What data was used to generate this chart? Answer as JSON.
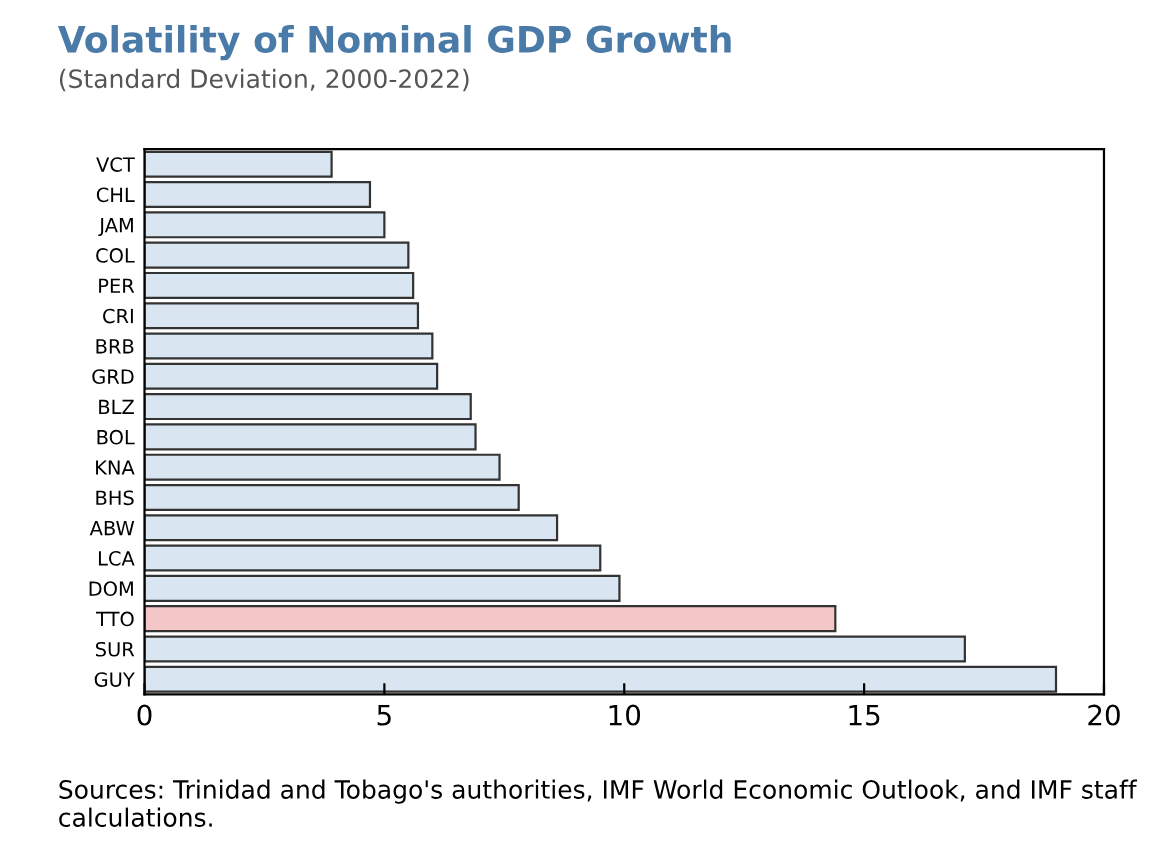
{
  "chart_data": {
    "type": "bar",
    "orientation": "horizontal",
    "title": "Volatility of Nominal GDP Growth",
    "subtitle": "(Standard Deviation, 2000-2022)",
    "categories": [
      "VCT",
      "CHL",
      "JAM",
      "COL",
      "PER",
      "CRI",
      "BRB",
      "GRD",
      "BLZ",
      "BOL",
      "KNA",
      "BHS",
      "ABW",
      "LCA",
      "DOM",
      "TTO",
      "SUR",
      "GUY"
    ],
    "values": [
      3.9,
      4.7,
      5.0,
      5.5,
      5.6,
      5.7,
      6.0,
      6.1,
      6.8,
      6.9,
      7.4,
      7.8,
      8.6,
      9.5,
      9.9,
      14.4,
      17.1,
      19.0
    ],
    "colors": [
      "#d9e6f1",
      "#d9e6f1",
      "#d9e6f1",
      "#d9e6f1",
      "#d9e6f1",
      "#d9e6f1",
      "#d9e6f1",
      "#d9e6f1",
      "#d9e6f1",
      "#d9e6f1",
      "#d9e6f1",
      "#d9e6f1",
      "#d9e6f1",
      "#d9e6f1",
      "#d9e6f1",
      "#f3c6c8",
      "#d9e6f1",
      "#d9e6f1"
    ],
    "xlim": [
      0,
      20
    ],
    "xticks": [
      0,
      5,
      10,
      15,
      20
    ],
    "grid": false,
    "legend": false,
    "annotations": [
      "Sources: Trinidad and Tobago's authorities, IMF World Economic Outlook, and IMF staff calculations."
    ]
  }
}
